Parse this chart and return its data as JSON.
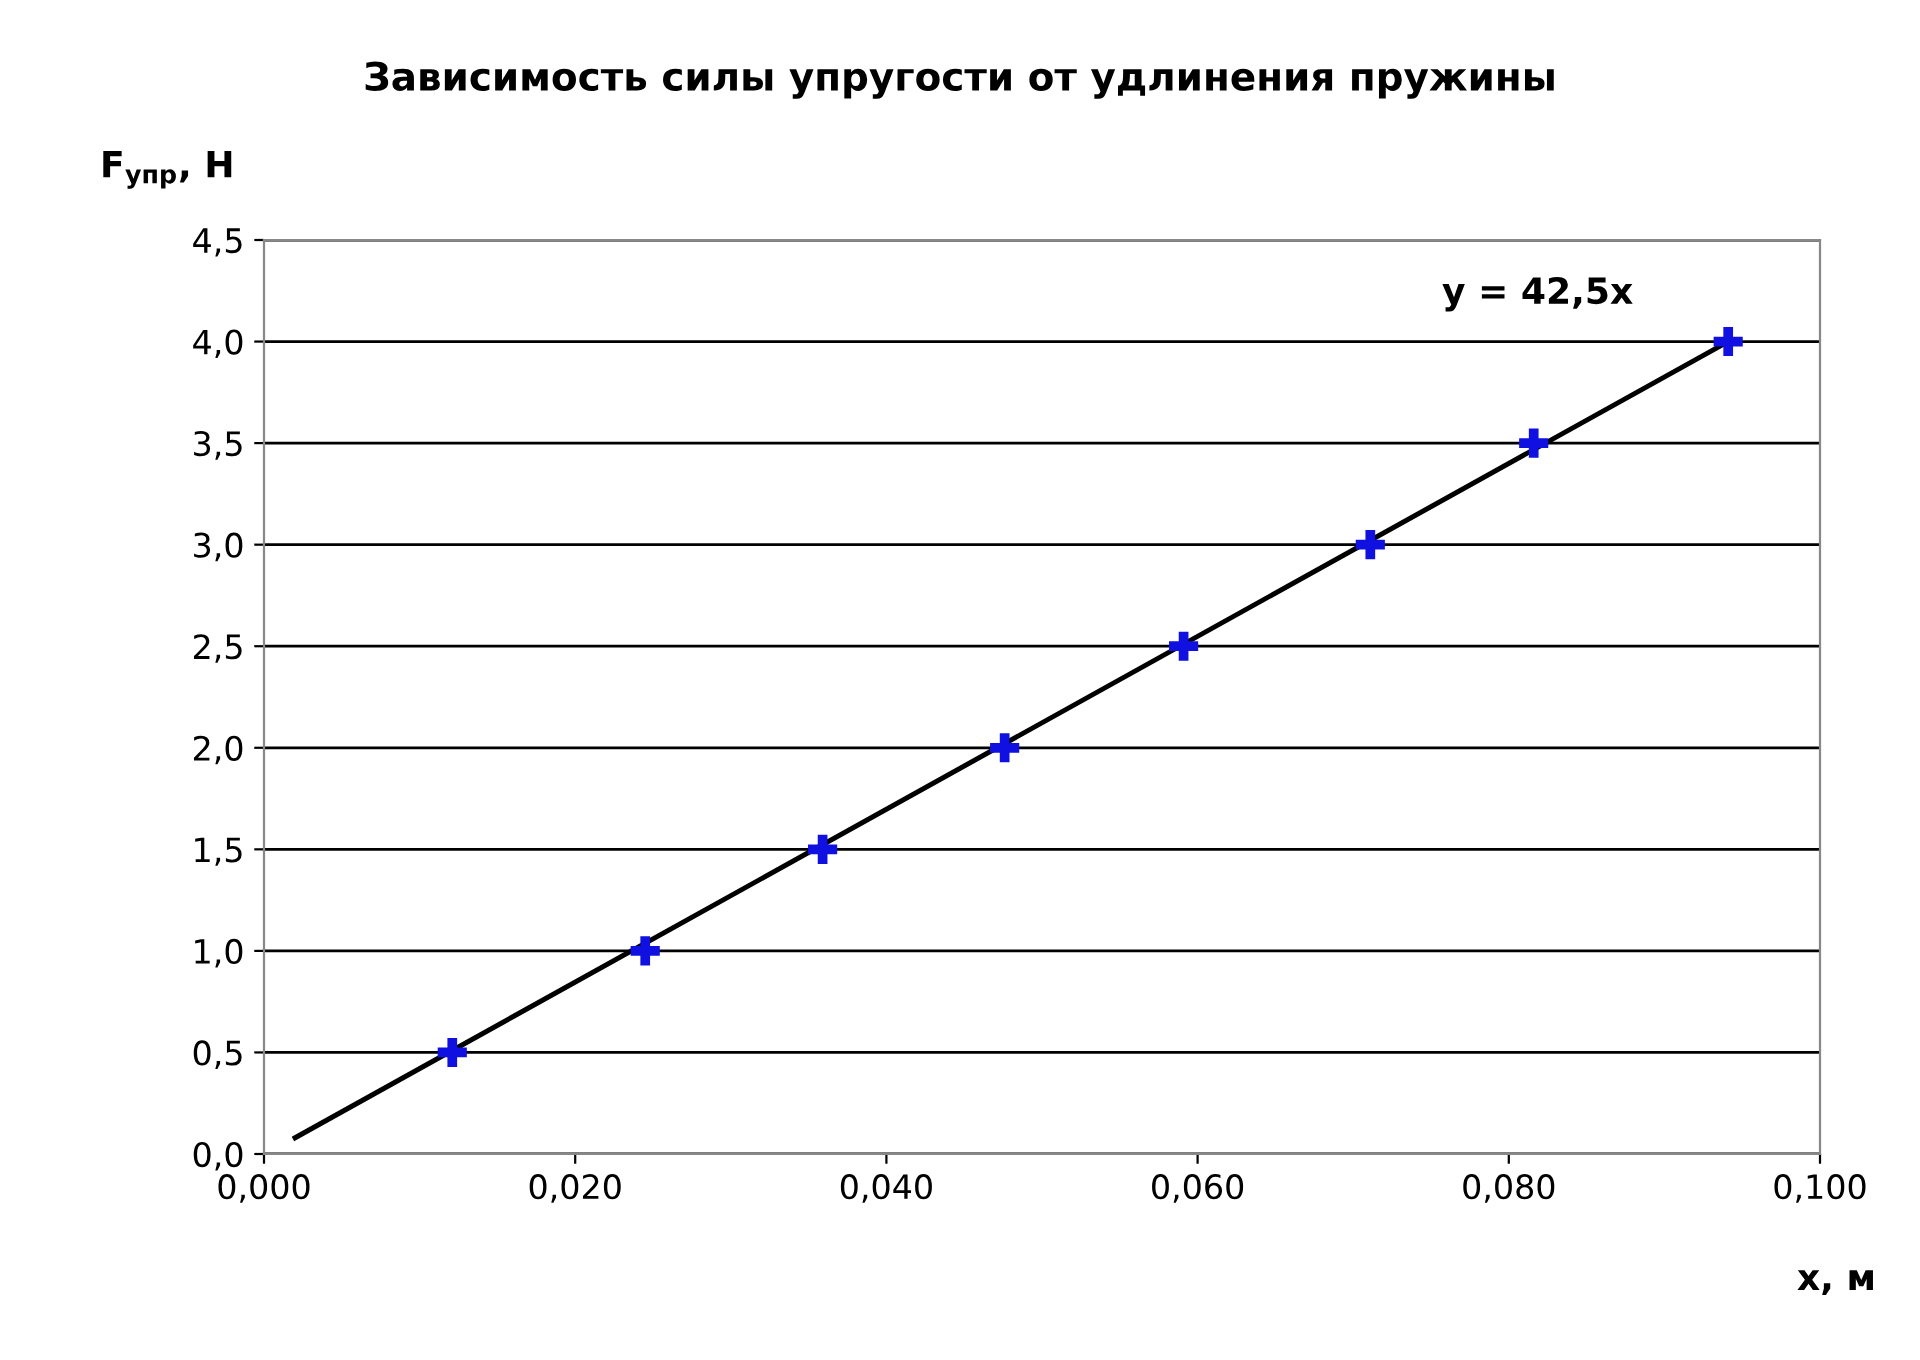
{
  "chart_data": {
    "type": "scatter",
    "title": "Зависимость силы упругости от удлинения пружины",
    "xlabel": "x, м",
    "ylabel": "F$_{упр}$, Н",
    "series": [
      {
        "color": "#1010e0",
        "marker": "cross",
        "x": [
          0.0121,
          0.0245,
          0.0359,
          0.0476,
          0.0591,
          0.0711,
          0.0816,
          0.0941
        ],
        "values": [
          0.5,
          1.0,
          1.5,
          2.0,
          2.5,
          3.0,
          3.5,
          4.0
        ]
      },
      {
        "type": "line",
        "color": "#000000",
        "marker": "none",
        "line_style": "solid",
        "x": [
          0.002,
          0.0941
        ],
        "values": [
          0.08,
          4.0
        ]
      }
    ],
    "annotations": [
      "y = 42,5x"
    ],
    "xlim": [
      0,
      0.1
    ],
    "ylim": [
      0,
      4.5
    ],
    "xticks": [
      {
        "value": 0,
        "label": "0,000"
      },
      {
        "value": 0.02,
        "label": "0,020"
      },
      {
        "value": 0.04,
        "label": "0,040"
      },
      {
        "value": 0.06,
        "label": "0,060"
      },
      {
        "value": 0.08,
        "label": "0,080"
      },
      {
        "value": 0.1,
        "label": "0,100"
      }
    ],
    "yticks": [
      {
        "value": 0,
        "label": "0,0"
      },
      {
        "value": 0.5,
        "label": "0,5"
      },
      {
        "value": 1,
        "label": "1,0"
      },
      {
        "value": 1.5,
        "label": "1,5"
      },
      {
        "value": 2,
        "label": "2,0"
      },
      {
        "value": 2.5,
        "label": "2,5"
      },
      {
        "value": 3,
        "label": "3,0"
      },
      {
        "value": 3.5,
        "label": "3,5"
      },
      {
        "value": 4,
        "label": "4,0"
      },
      {
        "value": 4.5,
        "label": "4,5"
      }
    ],
    "grid": "y",
    "legend": false
  }
}
